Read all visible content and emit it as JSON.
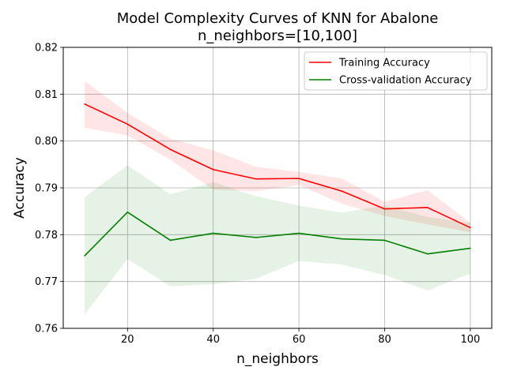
{
  "chart_data": {
    "type": "line",
    "title": [
      "Model Complexity Curves of KNN for Abalone",
      "n_neighbors=[10,100]"
    ],
    "xlabel": "n_neighbors",
    "ylabel": "Accuracy",
    "x": [
      10,
      20,
      30,
      40,
      50,
      60,
      70,
      80,
      90,
      100
    ],
    "xlim": [
      5,
      105
    ],
    "ylim": [
      0.76,
      0.82
    ],
    "xticks": [
      20,
      40,
      60,
      80,
      100
    ],
    "yticks": [
      0.76,
      0.77,
      0.78,
      0.79,
      0.8,
      0.81,
      0.82
    ],
    "xtick_labels": [
      "20",
      "40",
      "60",
      "80",
      "100"
    ],
    "ytick_labels": [
      "0.76",
      "0.77",
      "0.78",
      "0.79",
      "0.80",
      "0.81",
      "0.82"
    ],
    "grid": true,
    "legend_position": "top-right",
    "series": [
      {
        "name": "Training Accuracy",
        "color": "#ff0000",
        "band_color": "#ff0000",
        "values": [
          0.8079,
          0.8036,
          0.7982,
          0.7939,
          0.7919,
          0.792,
          0.7893,
          0.7855,
          0.7858,
          0.7815
        ],
        "upper": [
          0.8128,
          0.806,
          0.8005,
          0.798,
          0.7945,
          0.7934,
          0.792,
          0.787,
          0.7895,
          0.7825
        ],
        "lower": [
          0.8028,
          0.8012,
          0.796,
          0.7896,
          0.7893,
          0.7906,
          0.7866,
          0.784,
          0.7822,
          0.7805
        ]
      },
      {
        "name": "Cross-validation Accuracy",
        "color": "#008000",
        "band_color": "#008000",
        "values": [
          0.7755,
          0.7848,
          0.7788,
          0.7803,
          0.7794,
          0.7803,
          0.7791,
          0.7788,
          0.7759,
          0.7771
        ],
        "upper": [
          0.788,
          0.7948,
          0.7886,
          0.7912,
          0.7882,
          0.7862,
          0.7847,
          0.7862,
          0.7838,
          0.7825
        ],
        "lower": [
          0.763,
          0.7748,
          0.769,
          0.7694,
          0.7706,
          0.7744,
          0.7736,
          0.7714,
          0.7681,
          0.7717
        ]
      }
    ]
  }
}
